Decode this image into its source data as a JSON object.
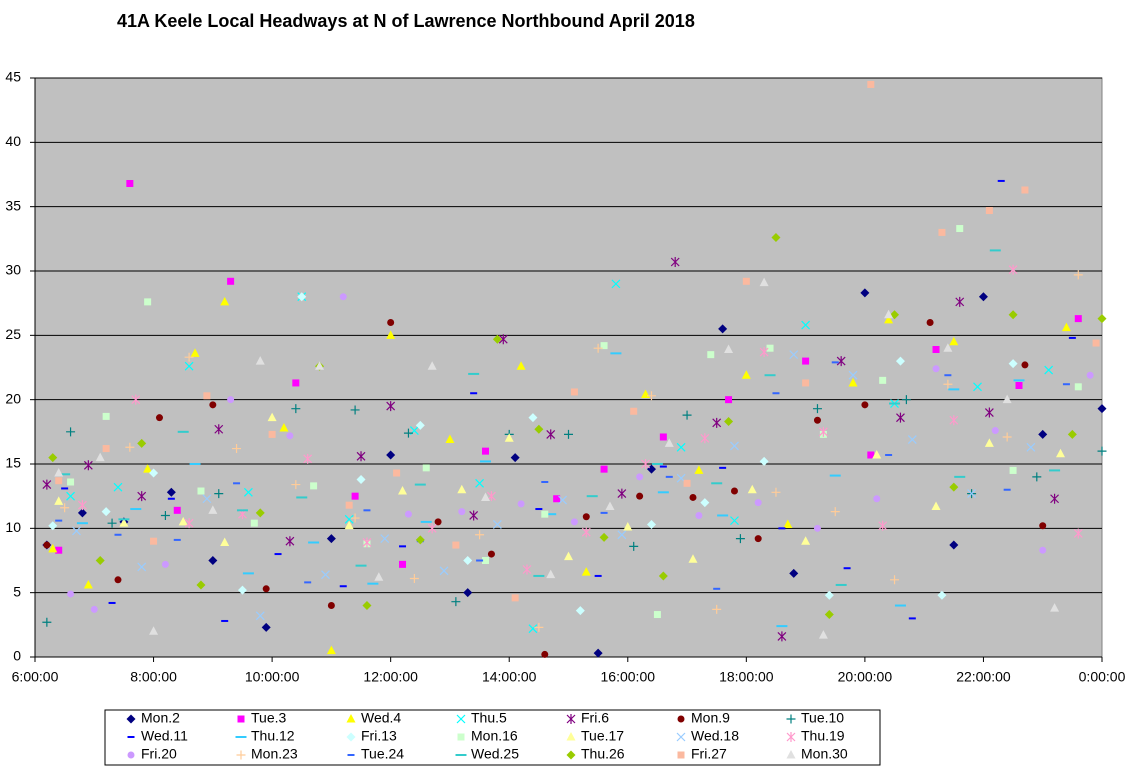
{
  "chart_data": {
    "type": "scatter",
    "title": "41A Keele Local Headways at N of Lawrence Northbound April 2018",
    "xlim": [
      6,
      24
    ],
    "xticks": [
      {
        "value": 6,
        "label": "6:00:00"
      },
      {
        "value": 8,
        "label": "8:00:00"
      },
      {
        "value": 10,
        "label": "10:00:00"
      },
      {
        "value": 12,
        "label": "12:00:00"
      },
      {
        "value": 14,
        "label": "14:00:00"
      },
      {
        "value": 16,
        "label": "16:00:00"
      },
      {
        "value": 18,
        "label": "18:00:00"
      },
      {
        "value": 20,
        "label": "20:00:00"
      },
      {
        "value": 22,
        "label": "22:00:00"
      },
      {
        "value": 24,
        "label": "0:00:00"
      }
    ],
    "ylim": [
      0,
      45
    ],
    "yticks": [
      0,
      5,
      10,
      15,
      20,
      25,
      30,
      35,
      40,
      45
    ],
    "grid": true,
    "legend": "bottom",
    "series": [
      {
        "name": "Mon.2",
        "color": "#000080",
        "marker": "diamond",
        "x": [
          6.2,
          6.8,
          7.5,
          8.3,
          9.0,
          9.9,
          11.0,
          12.0,
          13.3,
          14.1,
          15.5,
          16.4,
          17.6,
          18.8,
          20.0,
          21.5,
          22.0,
          23.0,
          24.0
        ],
        "values": [
          8.7,
          11.2,
          10.5,
          12.8,
          7.5,
          2.3,
          9.2,
          15.7,
          5.0,
          15.5,
          0.3,
          14.6,
          25.5,
          6.5,
          28.3,
          8.7,
          28.0,
          17.3,
          19.3
        ]
      },
      {
        "name": "Tue.3",
        "color": "#ff00ff",
        "marker": "square",
        "x": [
          6.4,
          7.6,
          8.4,
          9.3,
          10.4,
          11.4,
          12.2,
          13.6,
          14.8,
          15.6,
          16.6,
          17.7,
          19.0,
          20.1,
          21.2,
          22.6,
          23.6
        ],
        "values": [
          8.3,
          36.8,
          11.4,
          29.2,
          21.3,
          12.5,
          7.2,
          16.0,
          12.3,
          14.6,
          17.1,
          20.0,
          23.0,
          15.7,
          23.9,
          21.1,
          26.3
        ]
      },
      {
        "name": "Wed.4",
        "color": "#ffff00",
        "marker": "triangle",
        "x": [
          6.3,
          6.9,
          7.9,
          8.7,
          9.2,
          10.2,
          11.0,
          12.0,
          13.0,
          14.2,
          15.3,
          16.3,
          17.2,
          18.0,
          18.7,
          19.8,
          20.4,
          21.5,
          23.4
        ],
        "values": [
          8.4,
          5.6,
          14.6,
          23.6,
          27.6,
          17.8,
          0.5,
          25.0,
          16.9,
          22.6,
          6.6,
          20.4,
          14.5,
          21.9,
          10.3,
          21.3,
          26.2,
          24.5,
          25.6
        ]
      },
      {
        "name": "Thu.5",
        "color": "#00ffff",
        "marker": "x",
        "x": [
          6.6,
          7.4,
          8.6,
          9.6,
          10.5,
          11.3,
          12.4,
          13.5,
          14.4,
          15.8,
          16.9,
          17.8,
          19.0,
          20.5,
          21.9,
          23.1
        ],
        "values": [
          12.5,
          13.2,
          22.6,
          12.8,
          28.0,
          10.7,
          17.6,
          13.5,
          2.2,
          29.0,
          16.3,
          10.6,
          25.8,
          19.7,
          21.0,
          22.3
        ]
      },
      {
        "name": "Fri.6",
        "color": "#800080",
        "marker": "star",
        "x": [
          6.2,
          6.9,
          7.8,
          9.1,
          10.3,
          11.5,
          12.0,
          13.4,
          13.9,
          14.7,
          15.9,
          16.8,
          17.5,
          18.6,
          19.6,
          20.6,
          21.6,
          22.1,
          23.2
        ],
        "values": [
          13.4,
          14.9,
          12.5,
          17.7,
          9.0,
          15.6,
          19.5,
          11.0,
          24.7,
          17.3,
          12.7,
          30.7,
          18.2,
          1.6,
          23.0,
          18.6,
          27.6,
          19.0,
          12.3
        ]
      },
      {
        "name": "Mon.9",
        "color": "#800000",
        "marker": "circle",
        "x": [
          6.2,
          7.4,
          8.1,
          9.0,
          9.9,
          11.0,
          12.0,
          12.8,
          13.7,
          14.6,
          15.3,
          16.2,
          17.1,
          17.8,
          18.2,
          19.2,
          20.0,
          21.1,
          22.7,
          23.0
        ],
        "values": [
          8.7,
          6.0,
          18.6,
          19.6,
          5.3,
          4.0,
          26.0,
          10.5,
          8.0,
          0.2,
          10.9,
          12.5,
          12.4,
          12.9,
          9.2,
          18.4,
          19.6,
          26.0,
          22.7,
          10.2
        ]
      },
      {
        "name": "Tue.10",
        "color": "#008080",
        "marker": "plus",
        "x": [
          6.2,
          6.6,
          7.3,
          8.2,
          9.1,
          10.4,
          11.4,
          12.3,
          13.1,
          14.0,
          15.0,
          16.1,
          17.0,
          17.9,
          19.2,
          20.7,
          21.8,
          22.9,
          24.0
        ],
        "values": [
          2.7,
          17.5,
          10.4,
          11.0,
          12.7,
          19.3,
          19.2,
          17.4,
          4.3,
          17.3,
          17.3,
          8.6,
          18.8,
          9.2,
          19.3,
          20.0,
          12.7,
          14.0,
          16.0
        ]
      },
      {
        "name": "Wed.11",
        "color": "#0000ff",
        "marker": "dash",
        "x": [
          6.5,
          7.3,
          8.3,
          9.2,
          10.1,
          11.2,
          12.2,
          13.4,
          14.5,
          15.5,
          16.6,
          17.6,
          18.6,
          19.7,
          20.8,
          22.3,
          23.5
        ],
        "values": [
          13.1,
          4.2,
          12.3,
          2.8,
          8.0,
          5.5,
          8.6,
          20.5,
          11.5,
          6.3,
          14.8,
          14.7,
          10.0,
          6.9,
          3.0,
          37.0,
          24.8
        ]
      },
      {
        "name": "Thu.12",
        "color": "#33ccff",
        "marker": "longdash",
        "x": [
          6.8,
          7.7,
          8.7,
          9.6,
          10.7,
          11.7,
          12.6,
          13.6,
          14.7,
          15.8,
          16.6,
          17.6,
          18.6,
          19.5,
          20.6,
          21.5,
          22.6
        ],
        "values": [
          10.4,
          11.5,
          15.0,
          6.5,
          8.9,
          5.7,
          10.5,
          15.2,
          11.1,
          23.6,
          12.8,
          11.0,
          2.4,
          14.1,
          4.0,
          20.8,
          21.5
        ]
      },
      {
        "name": "Fri.13",
        "color": "#ccffff",
        "marker": "diamond",
        "x": [
          6.3,
          7.2,
          8.0,
          9.5,
          10.5,
          11.5,
          12.5,
          13.3,
          14.4,
          15.2,
          16.4,
          17.3,
          18.3,
          19.4,
          20.6,
          21.3,
          22.5
        ],
        "values": [
          10.2,
          11.3,
          14.3,
          5.2,
          28.0,
          13.8,
          18.0,
          7.5,
          18.6,
          3.6,
          10.3,
          12.0,
          15.2,
          4.8,
          23.0,
          4.8,
          22.8
        ]
      },
      {
        "name": "Mon.16",
        "color": "#ccffcc",
        "marker": "square",
        "x": [
          6.6,
          7.2,
          7.9,
          8.8,
          9.7,
          10.7,
          11.6,
          12.6,
          13.6,
          14.6,
          15.6,
          16.5,
          17.4,
          18.4,
          19.3,
          20.3,
          21.6,
          22.5,
          23.6
        ],
        "values": [
          13.6,
          18.7,
          27.6,
          12.9,
          10.4,
          13.3,
          8.8,
          14.7,
          7.5,
          11.1,
          24.2,
          3.3,
          23.5,
          24.0,
          17.3,
          21.5,
          33.3,
          14.5,
          21.0
        ]
      },
      {
        "name": "Tue.17",
        "color": "#ffff99",
        "marker": "triangle",
        "x": [
          6.4,
          7.5,
          8.5,
          9.2,
          10.0,
          11.3,
          12.2,
          13.2,
          14.0,
          15.0,
          16.0,
          17.1,
          18.1,
          19.0,
          20.2,
          21.2,
          22.1,
          23.3
        ],
        "values": [
          12.1,
          10.4,
          10.5,
          8.9,
          18.6,
          10.2,
          12.9,
          13.0,
          17.0,
          7.8,
          10.1,
          7.6,
          13.0,
          9.0,
          15.7,
          11.7,
          16.6,
          15.8
        ]
      },
      {
        "name": "Wed.18",
        "color": "#99ccff",
        "marker": "x",
        "x": [
          6.7,
          7.8,
          8.9,
          9.8,
          10.9,
          11.9,
          12.9,
          13.8,
          14.9,
          15.9,
          16.9,
          17.8,
          18.8,
          19.8,
          20.8,
          21.8,
          22.8
        ],
        "values": [
          9.8,
          7.0,
          12.3,
          3.2,
          6.4,
          9.2,
          6.7,
          10.3,
          12.2,
          9.5,
          13.9,
          16.4,
          23.5,
          21.9,
          16.9,
          12.7,
          16.3
        ]
      },
      {
        "name": "Thu.19",
        "color": "#ff99cc",
        "marker": "star",
        "x": [
          6.8,
          7.7,
          8.6,
          9.5,
          10.6,
          11.6,
          12.7,
          13.7,
          14.3,
          15.3,
          16.3,
          17.3,
          18.3,
          19.3,
          20.3,
          21.5,
          22.5,
          23.6
        ],
        "values": [
          11.8,
          20.0,
          10.4,
          11.1,
          15.4,
          8.9,
          10.0,
          12.5,
          6.8,
          9.7,
          15.0,
          17.0,
          23.7,
          17.5,
          10.2,
          18.4,
          30.1,
          9.6
        ]
      },
      {
        "name": "Fri.20",
        "color": "#cc99ff",
        "marker": "circle",
        "x": [
          6.6,
          7.0,
          8.2,
          9.3,
          10.3,
          11.2,
          12.3,
          13.2,
          14.2,
          15.1,
          16.2,
          17.2,
          18.2,
          19.2,
          20.2,
          21.2,
          22.2,
          23.0,
          23.8
        ],
        "values": [
          4.9,
          3.7,
          7.2,
          20.0,
          17.2,
          28.0,
          11.1,
          11.3,
          11.9,
          10.5,
          14.0,
          11.0,
          12.0,
          10.0,
          12.3,
          22.4,
          17.6,
          8.3,
          21.9
        ]
      },
      {
        "name": "Mon.23",
        "color": "#ffcc99",
        "marker": "plus",
        "x": [
          6.5,
          7.6,
          8.6,
          9.4,
          10.4,
          11.4,
          12.4,
          13.5,
          14.5,
          15.5,
          16.4,
          17.5,
          18.5,
          19.5,
          20.5,
          21.4,
          22.4,
          23.6
        ],
        "values": [
          11.6,
          16.3,
          23.3,
          16.2,
          13.4,
          10.8,
          6.1,
          9.5,
          2.3,
          24.0,
          20.3,
          3.7,
          12.8,
          11.3,
          6.0,
          21.2,
          17.1,
          29.7
        ]
      },
      {
        "name": "Tue.24",
        "color": "#3366ff",
        "marker": "dash",
        "x": [
          6.4,
          7.4,
          8.4,
          9.4,
          10.6,
          11.6,
          12.5,
          13.5,
          14.6,
          15.6,
          16.7,
          17.5,
          18.5,
          19.5,
          20.4,
          21.4,
          22.4,
          23.4
        ],
        "values": [
          10.6,
          9.5,
          9.1,
          13.5,
          5.8,
          11.4,
          9.0,
          7.5,
          13.6,
          11.2,
          14.0,
          5.3,
          20.5,
          22.9,
          15.7,
          21.9,
          13.0,
          21.2
        ]
      },
      {
        "name": "Wed.25",
        "color": "#33cccc",
        "marker": "longdash",
        "x": [
          6.5,
          7.5,
          8.5,
          9.5,
          10.5,
          11.5,
          12.5,
          13.4,
          14.5,
          15.4,
          16.5,
          17.5,
          18.4,
          19.6,
          20.5,
          21.6,
          22.2,
          23.2
        ],
        "values": [
          14.2,
          10.7,
          17.5,
          11.4,
          12.4,
          7.1,
          13.4,
          22.0,
          6.3,
          12.5,
          15.0,
          13.5,
          21.9,
          5.6,
          19.7,
          14.0,
          31.6,
          14.5
        ]
      },
      {
        "name": "Thu.26",
        "color": "#99cc00",
        "marker": "diamond",
        "x": [
          6.3,
          7.1,
          7.8,
          8.8,
          9.8,
          10.8,
          11.6,
          12.5,
          13.8,
          14.5,
          15.6,
          16.6,
          17.7,
          18.5,
          19.4,
          20.5,
          21.5,
          22.5,
          23.5,
          24.0
        ],
        "values": [
          15.5,
          7.5,
          16.6,
          5.6,
          11.2,
          22.6,
          4.0,
          9.1,
          24.7,
          17.7,
          9.3,
          6.3,
          18.3,
          32.6,
          3.3,
          26.6,
          13.2,
          26.6,
          17.3,
          26.3
        ]
      },
      {
        "name": "Fri.27",
        "color": "#fbb99f",
        "marker": "square",
        "x": [
          6.4,
          7.2,
          8.0,
          8.9,
          10.0,
          11.3,
          12.1,
          13.1,
          14.1,
          15.1,
          16.1,
          17.0,
          18.0,
          19.0,
          20.1,
          21.3,
          22.1,
          22.7,
          23.9
        ],
        "values": [
          13.7,
          16.2,
          9.0,
          20.3,
          17.3,
          11.8,
          14.3,
          8.7,
          4.6,
          20.6,
          19.1,
          13.5,
          29.2,
          21.3,
          44.5,
          33.0,
          34.7,
          36.3,
          24.4
        ]
      },
      {
        "name": "Mon.30",
        "color": "#e0e0e0",
        "marker": "triangle",
        "x": [
          6.4,
          7.1,
          8.0,
          9.0,
          9.8,
          10.8,
          11.8,
          12.7,
          13.6,
          14.7,
          15.7,
          16.7,
          17.7,
          18.3,
          19.3,
          20.4,
          21.4,
          22.4,
          23.2
        ],
        "values": [
          14.3,
          15.5,
          2.0,
          11.4,
          23.0,
          22.6,
          6.2,
          22.6,
          12.4,
          6.4,
          11.7,
          16.6,
          23.9,
          29.1,
          1.7,
          26.6,
          24.0,
          20.0,
          3.8
        ]
      }
    ]
  }
}
